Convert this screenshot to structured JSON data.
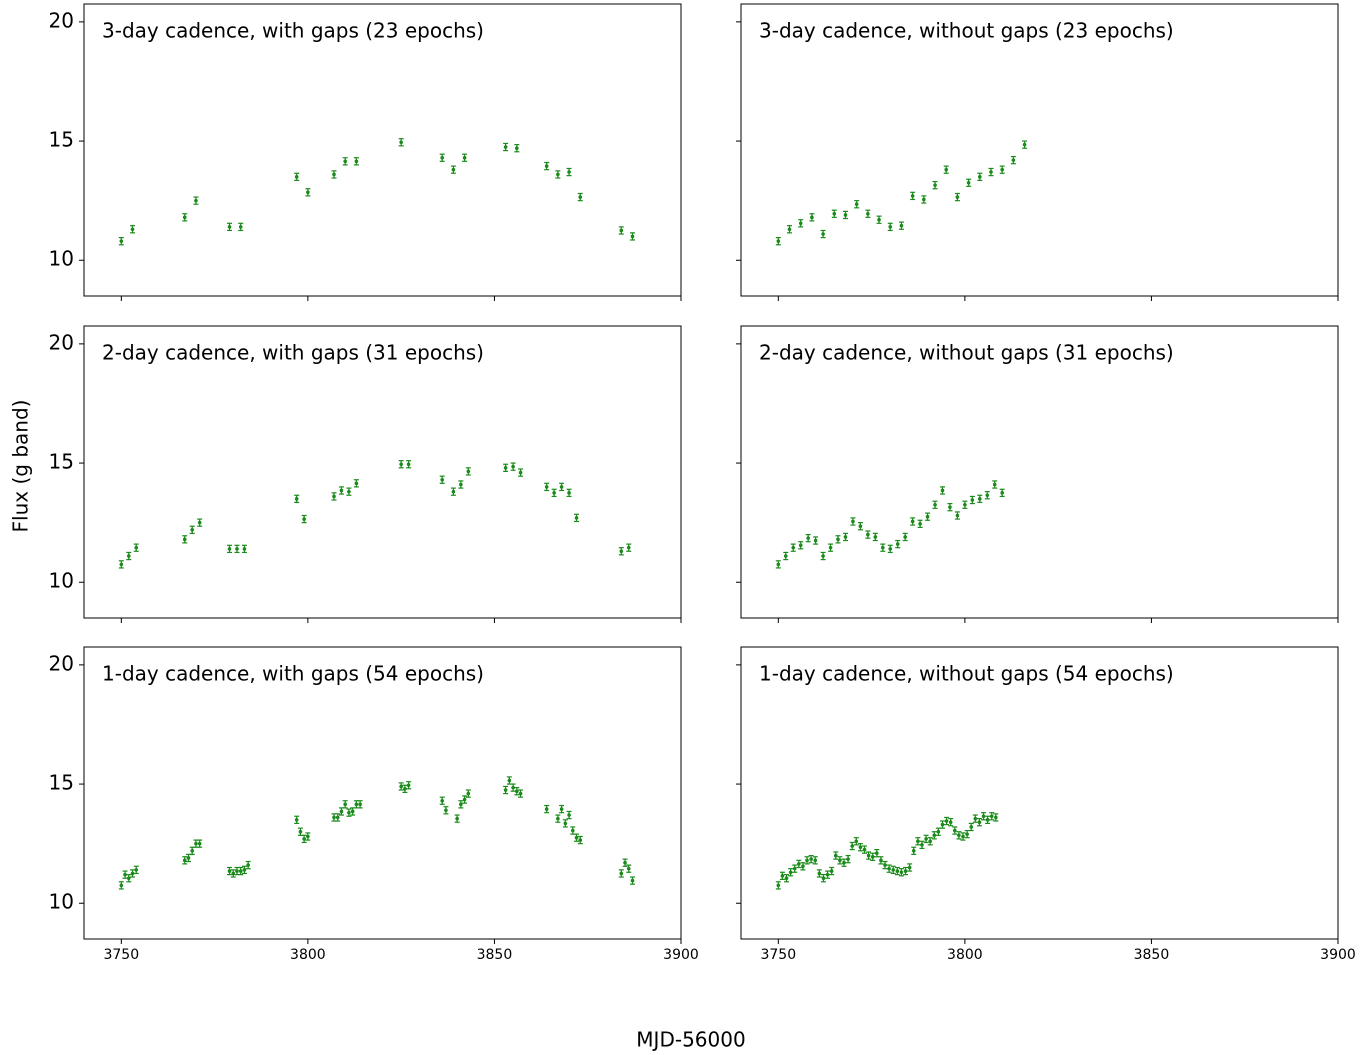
{
  "xlabel": "MJD-56000",
  "ylabel": "Flux (g band)",
  "chart_data": [
    {
      "type": "errorbar",
      "title": "3-day cadence, with gaps (23 epochs)",
      "color": "#1a8a1a",
      "yerr": 0.15,
      "x": [
        3750,
        3753,
        3767,
        3770,
        3779,
        3782,
        3797,
        3800,
        3807,
        3810,
        3813,
        3825,
        3836,
        3839,
        3842,
        3853,
        3856,
        3864,
        3867,
        3870,
        3873,
        3884,
        3887
      ],
      "values": [
        10.8,
        11.3,
        11.8,
        12.5,
        11.4,
        11.4,
        13.5,
        12.85,
        13.6,
        14.15,
        14.15,
        14.95,
        14.3,
        13.8,
        14.3,
        14.75,
        14.7,
        13.95,
        13.6,
        13.7,
        12.65,
        11.25,
        11.0
      ],
      "xlim": [
        3740,
        3900
      ],
      "ylim": [
        8.5,
        20.75
      ],
      "xticks": [
        3750,
        3800,
        3850,
        3900
      ],
      "yticks": [
        10,
        15,
        20
      ],
      "xticklabels": false,
      "yticklabels": true
    },
    {
      "type": "errorbar",
      "title": "3-day cadence, without gaps (23 epochs)",
      "color": "#1a8a1a",
      "yerr": 0.15,
      "x": [
        3750,
        3753,
        3756,
        3759,
        3762,
        3765,
        3768,
        3771,
        3774,
        3777,
        3780,
        3783,
        3786,
        3789,
        3792,
        3795,
        3798,
        3801,
        3804,
        3807,
        3810,
        3813,
        3816
      ],
      "values": [
        10.8,
        11.3,
        11.55,
        11.8,
        11.1,
        11.95,
        11.9,
        12.35,
        11.95,
        11.7,
        11.4,
        11.45,
        12.7,
        12.55,
        13.15,
        13.8,
        12.65,
        13.25,
        13.5,
        13.7,
        13.8,
        14.2,
        14.85
      ],
      "xlim": [
        3740,
        3900
      ],
      "ylim": [
        8.5,
        20.75
      ],
      "xticks": [
        3750,
        3800,
        3850,
        3900
      ],
      "yticks": [
        10,
        15,
        20
      ],
      "xticklabels": false,
      "yticklabels": false
    },
    {
      "type": "errorbar",
      "title": "2-day cadence, with gaps (31 epochs)",
      "color": "#1a8a1a",
      "yerr": 0.15,
      "x": [
        3750,
        3752,
        3754,
        3767,
        3769,
        3771,
        3779,
        3781,
        3783,
        3797,
        3799,
        3807,
        3809,
        3811,
        3813,
        3825,
        3827,
        3836,
        3839,
        3841,
        3843,
        3853,
        3855,
        3857,
        3864,
        3866,
        3868,
        3870,
        3872,
        3884,
        3886
      ],
      "values": [
        10.75,
        11.1,
        11.45,
        11.8,
        12.2,
        12.5,
        11.4,
        11.4,
        11.4,
        13.5,
        12.65,
        13.6,
        13.85,
        13.8,
        14.15,
        14.95,
        14.95,
        14.3,
        13.8,
        14.1,
        14.65,
        14.8,
        14.85,
        14.6,
        14.0,
        13.75,
        14.0,
        13.75,
        12.7,
        11.3,
        11.45
      ],
      "xlim": [
        3740,
        3900
      ],
      "ylim": [
        8.5,
        20.75
      ],
      "xticks": [
        3750,
        3800,
        3850,
        3900
      ],
      "yticks": [
        10,
        15,
        20
      ],
      "xticklabels": false,
      "yticklabels": true
    },
    {
      "type": "errorbar",
      "title": "2-day cadence, without gaps (31 epochs)",
      "color": "#1a8a1a",
      "yerr": 0.15,
      "x": [
        3750,
        3752,
        3754,
        3756,
        3758,
        3760,
        3762,
        3764,
        3766,
        3768,
        3770,
        3772,
        3774,
        3776,
        3778,
        3780,
        3782,
        3784,
        3786,
        3788,
        3790,
        3792,
        3794,
        3796,
        3798,
        3800,
        3802,
        3804,
        3806,
        3808,
        3810
      ],
      "values": [
        10.75,
        11.1,
        11.45,
        11.55,
        11.85,
        11.75,
        11.1,
        11.45,
        11.8,
        11.9,
        12.55,
        12.35,
        12.0,
        11.9,
        11.45,
        11.4,
        11.6,
        11.9,
        12.55,
        12.45,
        12.75,
        13.25,
        13.85,
        13.15,
        12.8,
        13.25,
        13.45,
        13.5,
        13.65,
        14.1,
        13.75
      ],
      "xlim": [
        3740,
        3900
      ],
      "ylim": [
        8.5,
        20.75
      ],
      "xticks": [
        3750,
        3800,
        3850,
        3900
      ],
      "yticks": [
        10,
        15,
        20
      ],
      "xticklabels": false,
      "yticklabels": false
    },
    {
      "type": "errorbar",
      "title": "1-day cadence, with gaps (54 epochs)",
      "color": "#1a8a1a",
      "yerr": 0.15,
      "x": [
        3750,
        3751,
        3752,
        3753,
        3754,
        3767,
        3768,
        3769,
        3770,
        3771,
        3779,
        3780,
        3781,
        3782,
        3783,
        3784,
        3797,
        3798,
        3799,
        3800,
        3807,
        3808,
        3809,
        3810,
        3811,
        3812,
        3813,
        3814,
        3825,
        3826,
        3827,
        3836,
        3837,
        3840,
        3841,
        3842,
        3843,
        3853,
        3854,
        3855,
        3856,
        3857,
        3864,
        3867,
        3868,
        3869,
        3870,
        3871,
        3872,
        3873,
        3884,
        3885,
        3886,
        3887
      ],
      "values": [
        10.75,
        11.2,
        11.05,
        11.25,
        11.4,
        11.8,
        11.9,
        12.2,
        12.5,
        12.5,
        11.35,
        11.25,
        11.35,
        11.35,
        11.4,
        11.6,
        13.5,
        13.0,
        12.7,
        12.8,
        13.6,
        13.6,
        13.85,
        14.15,
        13.8,
        13.85,
        14.15,
        14.15,
        14.9,
        14.8,
        14.95,
        14.3,
        13.9,
        13.55,
        14.15,
        14.35,
        14.6,
        14.75,
        15.15,
        14.85,
        14.7,
        14.6,
        13.95,
        13.55,
        13.95,
        13.35,
        13.7,
        13.05,
        12.75,
        12.65,
        11.25,
        11.7,
        11.45,
        10.95
      ],
      "xlim": [
        3740,
        3900
      ],
      "ylim": [
        8.5,
        20.75
      ],
      "xticks": [
        3750,
        3800,
        3850,
        3900
      ],
      "yticks": [
        10,
        15,
        20
      ],
      "xticklabels": true,
      "yticklabels": true
    },
    {
      "type": "errorbar",
      "title": "1-day cadence, without gaps (54 epochs)",
      "color": "#1a8a1a",
      "yerr": 0.15,
      "x": [
        3750,
        3751.1,
        3752.2,
        3753.3,
        3754.4,
        3755.5,
        3756.6,
        3757.7,
        3758.8,
        3759.9,
        3761,
        3762.1,
        3763.2,
        3764.3,
        3765.4,
        3766.5,
        3767.6,
        3768.7,
        3769.8,
        3770.9,
        3772,
        3773.1,
        3774.2,
        3775.3,
        3776.4,
        3777.5,
        3778.6,
        3779.7,
        3780.8,
        3781.9,
        3783,
        3784.1,
        3785.2,
        3786.3,
        3787.4,
        3788.5,
        3789.6,
        3790.7,
        3791.8,
        3792.9,
        3794,
        3795.1,
        3796.2,
        3797.3,
        3798.4,
        3799.5,
        3800.6,
        3801.7,
        3802.8,
        3803.9,
        3805,
        3806.1,
        3807.2,
        3808.3
      ],
      "values": [
        10.75,
        11.15,
        11.05,
        11.3,
        11.45,
        11.65,
        11.55,
        11.8,
        11.85,
        11.8,
        11.25,
        11.05,
        11.2,
        11.35,
        12.0,
        11.8,
        11.7,
        11.85,
        12.4,
        12.6,
        12.35,
        12.25,
        12.0,
        11.95,
        12.1,
        11.8,
        11.6,
        11.45,
        11.4,
        11.35,
        11.3,
        11.35,
        11.5,
        12.2,
        12.6,
        12.45,
        12.7,
        12.6,
        12.85,
        13.0,
        13.3,
        13.45,
        13.4,
        13.05,
        12.85,
        12.8,
        12.9,
        13.2,
        13.55,
        13.4,
        13.65,
        13.5,
        13.65,
        13.6
      ],
      "xlim": [
        3740,
        3900
      ],
      "ylim": [
        8.5,
        20.75
      ],
      "xticks": [
        3750,
        3800,
        3850,
        3900
      ],
      "yticks": [
        10,
        15,
        20
      ],
      "xticklabels": true,
      "yticklabels": false
    }
  ]
}
